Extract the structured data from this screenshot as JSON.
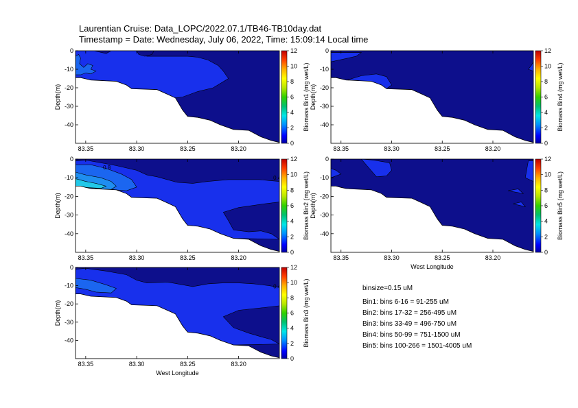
{
  "header": {
    "line1": "Laurentian Cruise: Data_LOPC/2022.07.1/TB46-TB10day.dat",
    "line2": "Timestamp = Date: Wednesday, July 06, 2022, Time: 15:09:14 Local time"
  },
  "notes": {
    "binsize": "binsize=0.15 uM",
    "bins": [
      "Bin1: bins 6-16 = 91-255 uM",
      "Bin2: bins 17-32 = 256-495 uM",
      "Bin3: bins 33-49 = 496-750 uM",
      "Bin4: bins 50-99 = 751-1500 uM",
      "Bin5: bins 100-266 = 1501-4005 uM"
    ]
  },
  "colors": {
    "dark": "#0d0f8c",
    "mid": "#1830ec",
    "light": "#1b66f0",
    "lighter": "#1f8ef0",
    "cyan": "#22c8e8",
    "seafloor": "#ffffff",
    "contour": "#000000"
  },
  "chart_data": {
    "type": "heatmap",
    "x_ticks": [
      "83.35",
      "83.30",
      "83.25",
      "83.20"
    ],
    "x_tick_values": [
      83.35,
      83.3,
      83.25,
      83.2
    ],
    "xlim": [
      83.36,
      83.16
    ],
    "xlabel": "West Longitude",
    "y_ticks": [
      "0",
      "-10",
      "-20",
      "-30",
      "-40"
    ],
    "y_tick_values": [
      0,
      -10,
      -20,
      -30,
      -40
    ],
    "ylim": [
      -50,
      0
    ],
    "ylabel": "Depth(m)",
    "colorbar_ticks": [
      "0",
      "2",
      "4",
      "6",
      "8",
      "10",
      "12"
    ],
    "colorbar_tick_values": [
      0,
      2,
      4,
      6,
      8,
      10,
      12
    ],
    "colorbar_range": [
      0,
      12
    ],
    "seafloor": {
      "x": [
        83.36,
        83.355,
        83.35,
        83.345,
        83.32,
        83.31,
        83.305,
        83.28,
        83.27,
        83.262,
        83.255,
        83.25,
        83.24,
        83.228,
        83.218,
        83.205,
        83.19,
        83.178,
        83.168,
        83.16
      ],
      "y": [
        -14.5,
        -14.5,
        -15.2,
        -15.8,
        -16.5,
        -18.5,
        -20.5,
        -21,
        -23.5,
        -25.5,
        -32,
        -35.5,
        -36,
        -37.5,
        -40,
        -42.5,
        -43,
        -46.5,
        -48.5,
        -49.5
      ]
    },
    "panels": [
      {
        "id": "bin1",
        "colorbar_label": "Biomass Bin1 (mg wet/L)",
        "show_xlabel": false,
        "contour_labels": [],
        "regions": [
          {
            "level": "mid",
            "x": [
              83.36,
              83.342,
              83.33,
              83.325,
              83.3,
              83.29,
              83.25,
              83.24,
              83.23,
              83.22,
              83.215,
              83.21,
              83.225,
              83.24,
              83.255,
              83.262,
              83.27,
              83.28,
              83.305,
              83.31,
              83.32,
              83.345,
              83.35,
              83.355,
              83.36
            ],
            "y": [
              0,
              0,
              -1.5,
              0,
              0,
              -3,
              -3,
              -3.5,
              -5,
              -8,
              -11,
              -15,
              -20,
              -22,
              -25,
              -25.5,
              -23.5,
              -21,
              -20.5,
              -18.5,
              -16.5,
              -15.8,
              -15.2,
              -14.5,
              -14.5
            ]
          },
          {
            "level": "light",
            "x": [
              83.36,
              83.357,
              83.355,
              83.356,
              83.352,
              83.348,
              83.343,
              83.345,
              83.34,
              83.345,
              83.35,
              83.355,
              83.36
            ],
            "y": [
              -3,
              -2,
              -4,
              -7,
              -9,
              -7,
              -8,
              -10,
              -11,
              -12.5,
              -12,
              -13,
              -13
            ]
          },
          {
            "level": "dark",
            "x": [
              83.3,
              83.298,
              83.292,
              83.285,
              83.283,
              83.3
            ],
            "y": [
              0,
              -2,
              -3,
              -2,
              0,
              0
            ]
          }
        ]
      },
      {
        "id": "bin4",
        "colorbar_label": "Biomass Bin4 (mg wet/L)",
        "show_xlabel": false,
        "contour_labels": [],
        "regions": [
          {
            "level": "mid",
            "x": [
              83.36,
              83.36,
              83.335,
              83.33,
              83.36
            ],
            "y": [
              -1,
              -6,
              -3,
              -1,
              -1
            ]
          },
          {
            "level": "mid",
            "x": [
              83.345,
              83.33,
              83.315,
              83.305,
              83.3,
              83.305,
              83.32,
              83.335,
              83.345
            ],
            "y": [
              -16,
              -13.5,
              -12.5,
              -14,
              -18.5,
              -20.5,
              -17,
              -16,
              -16
            ]
          },
          {
            "level": "mid",
            "x": [
              83.162,
              83.16,
              83.16,
              83.165,
              83.162
            ],
            "y": [
              -8,
              -6,
              -11,
              -10,
              -8
            ]
          }
        ]
      },
      {
        "id": "bin2",
        "colorbar_label": "Biomass Bin2 (mg wet/L)",
        "show_xlabel": false,
        "contour_labels": [
          {
            "text": "0.8",
            "x": 83.333,
            "y": -5.5
          },
          {
            "text": "0.4",
            "x": 83.166,
            "y": -11
          }
        ],
        "regions": [
          {
            "level": "mid",
            "x": [
              83.36,
              83.35,
              83.32,
              83.3,
              83.29,
              83.28,
              83.27,
              83.26,
              83.245,
              83.23,
              83.21,
              83.19,
              83.18,
              83.17,
              83.16,
              83.16,
              83.175,
              83.2,
              83.215,
              83.21,
              83.205,
              83.19,
              83.178,
              83.168,
              83.16,
              83.205,
              83.218,
              83.228,
              83.24,
              83.25,
              83.255,
              83.262,
              83.27,
              83.28,
              83.305,
              83.31,
              83.32,
              83.345,
              83.35,
              83.355,
              83.36
            ],
            "y": [
              -1,
              -0.5,
              -3.5,
              -6,
              -8.5,
              -9.5,
              -11,
              -12.5,
              -13,
              -12,
              -11,
              -11,
              -11,
              -11.5,
              -12,
              -23,
              -24,
              -26,
              -28.5,
              -33,
              -38,
              -39,
              -38.5,
              -40,
              -43,
              -42.5,
              -40,
              -37.5,
              -36,
              -35.5,
              -32,
              -25.5,
              -23.5,
              -21,
              -20.5,
              -18.5,
              -16.5,
              -15.8,
              -15.2,
              -14.5,
              -14.5
            ]
          },
          {
            "level": "light",
            "x": [
              83.36,
              83.345,
              83.33,
              83.315,
              83.305,
              83.3,
              83.31,
              83.32,
              83.33,
              83.345,
              83.35,
              83.355,
              83.36
            ],
            "y": [
              -3,
              -3,
              -5,
              -8,
              -11,
              -15,
              -17,
              -16.5,
              -16,
              -15.8,
              -15.2,
              -14.5,
              -14.5
            ]
          },
          {
            "level": "lighter",
            "x": [
              83.36,
              83.35,
              83.335,
              83.325,
              83.32,
              83.325,
              83.335,
              83.35,
              83.355,
              83.36
            ],
            "y": [
              -7,
              -8.5,
              -10,
              -12,
              -14.5,
              -16.3,
              -16,
              -15.2,
              -14.5,
              -14.5
            ]
          },
          {
            "level": "cyan",
            "x": [
              83.36,
              83.35,
              83.34,
              83.33,
              83.335,
              83.35,
              83.36
            ],
            "y": [
              -10.5,
              -12,
              -13,
              -14.5,
              -15.7,
              -15.2,
              -14.5
            ]
          }
        ]
      },
      {
        "id": "bin5",
        "colorbar_label": "Biomass Bin5 (mg wet/L)",
        "show_xlabel": true,
        "contour_labels": [],
        "regions": [
          {
            "level": "mid",
            "x": [
              83.33,
              83.318,
              83.302,
              83.3,
              83.305,
              83.315,
              83.33
            ],
            "y": [
              0,
              -0.5,
              -2,
              -6,
              -9,
              -9.5,
              0
            ]
          },
          {
            "level": "mid",
            "x": [
              83.36,
              83.355,
              83.35,
              83.36
            ],
            "y": [
              -5,
              -6,
              -8,
              -10
            ]
          },
          {
            "level": "mid",
            "x": [
              83.165,
              83.16,
              83.16,
              83.168,
              83.165
            ],
            "y": [
              -1,
              -1,
              -12,
              -10,
              -1
            ]
          },
          {
            "level": "mid",
            "x": [
              83.185,
              83.175,
              83.17,
              83.185
            ],
            "y": [
              -17,
              -16,
              -18.5,
              -17
            ]
          },
          {
            "level": "mid",
            "x": [
              83.18,
              83.172,
              83.168,
              83.18
            ],
            "y": [
              -24,
              -23,
              -25.5,
              -24
            ]
          }
        ]
      },
      {
        "id": "bin3",
        "colorbar_label": "Biomass Bin3 (mg wet/L)",
        "show_xlabel": true,
        "contour_labels": [
          {
            "text": "0.4",
            "x": 83.166,
            "y": -11.5
          }
        ],
        "regions": [
          {
            "level": "mid",
            "x": [
              83.36,
              83.35,
              83.33,
              83.31,
              83.3,
              83.29,
              83.27,
              83.26,
              83.245,
              83.23,
              83.215,
              83.2,
              83.185,
              83.17,
              83.16,
              83.16,
              83.175,
              83.2,
              83.215,
              83.205,
              83.19,
              83.178,
              83.168,
              83.16,
              83.205,
              83.218,
              83.228,
              83.24,
              83.25,
              83.255,
              83.262,
              83.27,
              83.28,
              83.305,
              83.31,
              83.32,
              83.345,
              83.35,
              83.355,
              83.36
            ],
            "y": [
              -1,
              -0.5,
              -2,
              -4,
              -7,
              -8.5,
              -8,
              -9,
              -10.5,
              -9,
              -8.5,
              -8.5,
              -9,
              -10,
              -11,
              -21,
              -22,
              -23.5,
              -27,
              -33,
              -36,
              -38,
              -39.5,
              -42,
              -42.5,
              -40,
              -37.5,
              -36,
              -35.5,
              -32,
              -25.5,
              -23.5,
              -21,
              -20.5,
              -18.5,
              -16.5,
              -15.8,
              -15.2,
              -14.5,
              -14.5
            ]
          },
          {
            "level": "light",
            "x": [
              83.36,
              83.345,
              83.33,
              83.32,
              83.325,
              83.34,
              83.35,
              83.36
            ],
            "y": [
              -6,
              -7,
              -9.5,
              -11.5,
              -14,
              -13.5,
              -12,
              -11
            ]
          }
        ]
      }
    ]
  }
}
